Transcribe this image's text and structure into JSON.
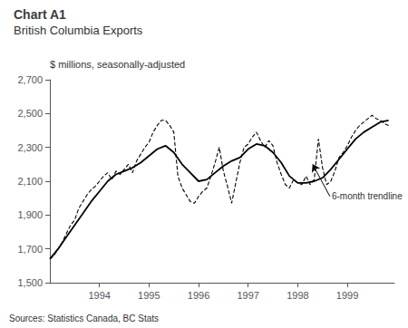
{
  "chart_data": {
    "type": "line",
    "title": "Chart A1",
    "subtitle": "British Columbia Exports",
    "ylabel": "$ millions, seasonally-adjusted",
    "source": "Sources: Statistics Canada, BC Stats",
    "annotations": [
      {
        "text": "6-month trendline",
        "xy": [
          1998.3,
          2200
        ],
        "xytext": [
          1998.65,
          2010
        ]
      }
    ],
    "xlim": [
      1993.0,
      1999.95
    ],
    "xticks": [
      1994,
      1995,
      1996,
      1997,
      1998,
      1999
    ],
    "ylim": [
      1500,
      2700
    ],
    "yticks": [
      {
        "value": 1500,
        "label": "1,500"
      },
      {
        "value": 1700,
        "label": "1,700"
      },
      {
        "value": 1900,
        "label": "1,900"
      },
      {
        "value": 2100,
        "label": "2,100"
      },
      {
        "value": 2300,
        "label": "2,300"
      },
      {
        "value": 2500,
        "label": "2,500"
      },
      {
        "value": 2700,
        "label": "2,700"
      }
    ],
    "grid": false,
    "series": [
      {
        "color": "#000000",
        "line_style": "dashed",
        "x": [
          1993.0,
          1993.083,
          1993.167,
          1993.25,
          1993.333,
          1993.417,
          1993.5,
          1993.583,
          1993.667,
          1993.75,
          1993.833,
          1993.917,
          1994.0,
          1994.083,
          1994.167,
          1994.25,
          1994.333,
          1994.417,
          1994.5,
          1994.583,
          1994.667,
          1994.75,
          1994.833,
          1994.917,
          1995.0,
          1995.083,
          1995.167,
          1995.25,
          1995.333,
          1995.417,
          1995.5,
          1995.583,
          1995.667,
          1995.75,
          1995.833,
          1995.917,
          1996.0,
          1996.083,
          1996.167,
          1996.25,
          1996.333,
          1996.417,
          1996.5,
          1996.583,
          1996.667,
          1996.75,
          1996.833,
          1996.917,
          1997.0,
          1997.083,
          1997.167,
          1997.25,
          1997.333,
          1997.417,
          1997.5,
          1997.583,
          1997.667,
          1997.75,
          1997.833,
          1997.917,
          1998.0,
          1998.083,
          1998.167,
          1998.25,
          1998.333,
          1998.417,
          1998.5,
          1998.583,
          1998.667,
          1998.75,
          1998.833,
          1998.917,
          1999.0,
          1999.083,
          1999.167,
          1999.25,
          1999.333,
          1999.417,
          1999.5,
          1999.583,
          1999.667,
          1999.75,
          1999.833
        ],
        "values": [
          1640,
          1660,
          1700,
          1740,
          1790,
          1840,
          1870,
          1940,
          1980,
          2020,
          2050,
          2070,
          2100,
          2130,
          2150,
          2110,
          2160,
          2140,
          2170,
          2200,
          2150,
          2220,
          2260,
          2300,
          2330,
          2390,
          2430,
          2460,
          2460,
          2430,
          2390,
          2130,
          2060,
          2020,
          1980,
          1970,
          2010,
          2040,
          2060,
          2130,
          2210,
          2300,
          2160,
          2070,
          1970,
          2090,
          2210,
          2300,
          2320,
          2360,
          2390,
          2340,
          2300,
          2340,
          2310,
          2210,
          2140,
          2080,
          2060,
          2110,
          2090,
          2080,
          2130,
          2080,
          2110,
          2350,
          2180,
          2080,
          2100,
          2160,
          2240,
          2270,
          2310,
          2360,
          2400,
          2430,
          2450,
          2470,
          2490,
          2470,
          2460,
          2440,
          2430
        ]
      },
      {
        "color": "#000000",
        "line_style": "solid",
        "x": [
          1993.0,
          1993.167,
          1993.333,
          1993.5,
          1993.667,
          1993.833,
          1994.0,
          1994.167,
          1994.333,
          1994.5,
          1994.667,
          1994.833,
          1995.0,
          1995.167,
          1995.333,
          1995.5,
          1995.667,
          1995.833,
          1996.0,
          1996.167,
          1996.333,
          1996.5,
          1996.667,
          1996.833,
          1997.0,
          1997.167,
          1997.333,
          1997.5,
          1997.667,
          1997.833,
          1998.0,
          1998.167,
          1998.333,
          1998.5,
          1998.667,
          1998.833,
          1999.0,
          1999.167,
          1999.333,
          1999.5,
          1999.667,
          1999.833
        ],
        "values": [
          1640,
          1700,
          1770,
          1840,
          1910,
          1980,
          2040,
          2100,
          2140,
          2160,
          2180,
          2210,
          2250,
          2290,
          2310,
          2270,
          2200,
          2150,
          2100,
          2110,
          2150,
          2190,
          2220,
          2240,
          2290,
          2320,
          2310,
          2270,
          2210,
          2130,
          2090,
          2090,
          2100,
          2120,
          2170,
          2230,
          2290,
          2350,
          2390,
          2420,
          2450,
          2460
        ]
      }
    ]
  }
}
